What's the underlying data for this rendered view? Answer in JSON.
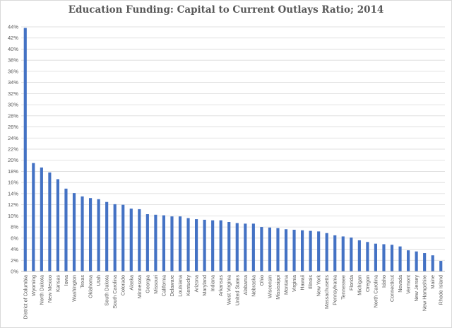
{
  "chart_data": {
    "type": "bar",
    "title": "Education Funding: Capital to Current Outlays Ratio; 2014",
    "xlabel": "",
    "ylabel": "",
    "ylim": [
      0,
      44
    ],
    "yticks": [
      "0%",
      "2%",
      "4%",
      "6%",
      "8%",
      "10%",
      "12%",
      "14%",
      "16%",
      "18%",
      "20%",
      "22%",
      "24%",
      "26%",
      "28%",
      "30%",
      "32%",
      "34%",
      "36%",
      "38%",
      "40%",
      "42%",
      "44%"
    ],
    "grid": true,
    "bar_color": "#4472c4",
    "categories": [
      "District of Columbia",
      "Wyoming",
      "North Dakota",
      "New Mexico",
      "Kansas",
      "Iowa",
      "Washington",
      "Texas",
      "Oklahoma",
      "Utah",
      "South Dakota",
      "South Carolina",
      "Colorado",
      "Alaska",
      "Minnesota",
      "Georgia",
      "Missouri",
      "California",
      "Delaware",
      "Louisiana",
      "Kentucky",
      "Arizona",
      "Maryland",
      "Indiana",
      "Arkansas",
      "West Virginia",
      "United States",
      "Alabama",
      "Nebraska",
      "Ohio",
      "Wisconsin",
      "Mississippi",
      "Montana",
      "Virginia",
      "Hawaii",
      "Illinois",
      "New York",
      "Massachusetts",
      "Pennsylvania",
      "Tennessee",
      "Florida",
      "Michigan",
      "Oregon",
      "North Carolina",
      "Idaho",
      "Connecticut",
      "Nevada",
      "Vermont",
      "New Jersey",
      "New Hampshire",
      "Maine",
      "Rhode Island"
    ],
    "values": [
      43.8,
      19.5,
      18.7,
      17.8,
      16.6,
      14.9,
      14.1,
      13.5,
      13.2,
      13.0,
      12.5,
      12.1,
      12.0,
      11.3,
      11.2,
      10.3,
      10.2,
      10.1,
      9.9,
      9.9,
      9.6,
      9.4,
      9.3,
      9.2,
      9.2,
      8.9,
      8.7,
      8.6,
      8.6,
      8.0,
      7.9,
      7.8,
      7.6,
      7.5,
      7.4,
      7.3,
      7.2,
      6.9,
      6.5,
      6.3,
      6.1,
      5.6,
      5.3,
      5.0,
      4.9,
      4.8,
      4.5,
      3.8,
      3.6,
      3.3,
      2.9,
      1.9
    ]
  }
}
